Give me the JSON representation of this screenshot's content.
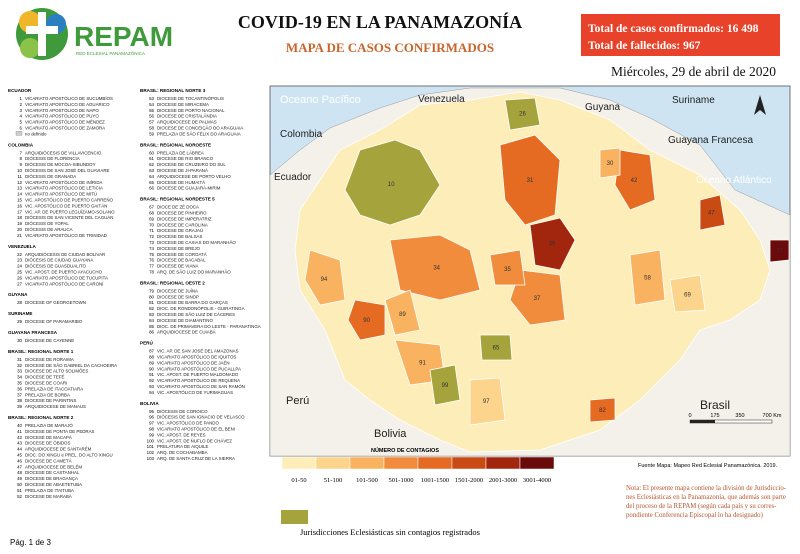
{
  "header": {
    "logo": "REPAM",
    "logo_sub": "RED ECLESIAL PANAMAZÓNICA",
    "title": "COVID-19 EN LA PANAMAZONÍA",
    "subtitle": "MAPA DE CASOS CONFIRMADOS",
    "totals": [
      "Total de casos confirmados: 16 498",
      "Total de fallecidos: 967"
    ],
    "date": "Miércoles, 29 de abril de 2020"
  },
  "lists": [
    [
      {
        "heading": "ECUADOR",
        "items": [
          {
            "n": "1",
            "name": "VICARIATO APOSTÓLICO DE SUCUMBÍOS"
          },
          {
            "n": "2",
            "name": "VICARIATO APOSTÓLICO DE AGUARICO"
          },
          {
            "n": "3",
            "name": "VICARIATO APOSTÓLICO DE NAPO"
          },
          {
            "n": "4",
            "name": "VICARIATO APOSTÓLICO DE PUYO"
          },
          {
            "n": "5",
            "name": "VICARIATO APOSTÓLICO DE MÉNDEZ"
          },
          {
            "n": "6",
            "name": "VICARIATO APOSTÓLICO DE ZAMORA"
          },
          {
            "n": "",
            "name": "no definido"
          }
        ]
      },
      {
        "heading": "COLOMBIA",
        "items": [
          {
            "n": "7",
            "name": "ARQUIDIÓCESIS DE VILLAVICENCIO"
          },
          {
            "n": "8",
            "name": "DIÓCESIS DE FLORENCIA"
          },
          {
            "n": "9",
            "name": "DIÓCESIS DE MOCOA-SIBUNDOY"
          },
          {
            "n": "10",
            "name": "DIÓCESIS DE SAN JOSÉ DEL GUAVIARE"
          },
          {
            "n": "11",
            "name": "DIÓCESIS DE GRANADA"
          },
          {
            "n": "12",
            "name": "VICARIATO APOSTÓLICO DE INÍRIDA"
          },
          {
            "n": "13",
            "name": "VICARIATO APOSTÓLICO DE LETICIA"
          },
          {
            "n": "14",
            "name": "VICARIATO APOSTÓLICO DE MITÚ"
          },
          {
            "n": "15",
            "name": "VIC. APOSTÓLICO DE PUERTO CARREÑO"
          },
          {
            "n": "16",
            "name": "VIC. APOSTÓLICO DE PUERTO GAITÁN"
          },
          {
            "n": "17",
            "name": "VIC. AP. DE PUERTO LEGUÍZAMO-SOLANO"
          },
          {
            "n": "18",
            "name": "DIÓCESIS DE SAN VICENTE DEL CAGUÁN"
          },
          {
            "n": "19",
            "name": "DIÓCESIS DE YOPAL"
          },
          {
            "n": "20",
            "name": "DIÓCESIS DE ARAUCA"
          },
          {
            "n": "21",
            "name": "VICARIATO APOSTÓLICO DE TRINIDAD"
          }
        ]
      },
      {
        "heading": "VENEZUELA",
        "items": [
          {
            "n": "22",
            "name": "ARQUIDIÓCESIS DE CIUDAD BOLÍVAR"
          },
          {
            "n": "23",
            "name": "DIÓCESIS DE CIUDAD GUAYANA"
          },
          {
            "n": "24",
            "name": "DIÓCESIS DE GUASDUALITO"
          },
          {
            "n": "25",
            "name": "VIC. APOST. DE PUERTO AYACUCHO"
          },
          {
            "n": "26",
            "name": "VICARIATO APOSTÓLICO DE TUCUPITA"
          },
          {
            "n": "27",
            "name": "VICARIATO APOSTÓLICO DE CARONÍ"
          }
        ]
      },
      {
        "heading": "GUYANA",
        "items": [
          {
            "n": "28",
            "name": "DIOCESE OF GEORGETOWN"
          }
        ]
      },
      {
        "heading": "SURINAME",
        "items": [
          {
            "n": "29",
            "name": "DIOCESE OF PARAMARIBO"
          }
        ]
      },
      {
        "heading": "GUAYANA FRANCESA",
        "items": [
          {
            "n": "30",
            "name": "DIOCESE DE CAYENNE"
          }
        ]
      },
      {
        "heading": "BRASIL: REGIONAL NORTE 1",
        "items": [
          {
            "n": "31",
            "name": "DIOCESE DE RORAIMA"
          },
          {
            "n": "32",
            "name": "DIOCESE DE SÃO GABRIEL DA CACHOEIRA"
          },
          {
            "n": "33",
            "name": "DIOCESE DE ALTO SOLIMÕES"
          },
          {
            "n": "34",
            "name": "DIOCESE DE TEFÉ"
          },
          {
            "n": "35",
            "name": "DIOCESE DE COARI"
          },
          {
            "n": "36",
            "name": "PRELAZIA DE ITACOATIARA"
          },
          {
            "n": "37",
            "name": "PRELAZIA DE BORBA"
          },
          {
            "n": "38",
            "name": "DIOCESE DE PARINTINS"
          },
          {
            "n": "39",
            "name": "ARQUIDIOCESE DE MANAUS"
          }
        ]
      },
      {
        "heading": "BRASIL: REGIONAL NORTE 2",
        "items": [
          {
            "n": "40",
            "name": "PRELAZIA DE MARAJÓ"
          },
          {
            "n": "41",
            "name": "DIOCESE DE PONTA DE PEDRAS"
          },
          {
            "n": "42",
            "name": "DIOCESE DE MACAPÁ"
          },
          {
            "n": "43",
            "name": "DIOCESE DE ÓBIDOS"
          },
          {
            "n": "44",
            "name": "ARQUIDIOCESE DE SANTARÉM"
          },
          {
            "n": "45",
            "name": "DIOC. DO XINGU e PREL. DO ALTO XINGU"
          },
          {
            "n": "46",
            "name": "DIOCESE DE CAMETÁ"
          },
          {
            "n": "47",
            "name": "ARQUIDIOCESE DE BELÉM"
          },
          {
            "n": "48",
            "name": "DIOCESE DE CASTANHAL"
          },
          {
            "n": "49",
            "name": "DIOCESE DE BRAGANÇA"
          },
          {
            "n": "50",
            "name": "DIOCESE DE ABAETETUBA"
          },
          {
            "n": "51",
            "name": "PRELAZIA DE ITAITUBA"
          },
          {
            "n": "52",
            "name": "DIOCESE DE MARABÁ"
          }
        ]
      }
    ],
    [
      {
        "heading": "BRASIL: REGIONAL NORTE 3",
        "items": [
          {
            "n": "53",
            "name": "DIOCESE DE TOCANTINÓPOLIS"
          },
          {
            "n": "54",
            "name": "DIOCESE DE MIRACEMA"
          },
          {
            "n": "55",
            "name": "DIOCESE DE PORTO NACIONAL"
          },
          {
            "n": "56",
            "name": "DIOCESE DE CRISTALÂNDIA"
          },
          {
            "n": "57",
            "name": "ARQUIDIOCESE DE PALMAS"
          },
          {
            "n": "58",
            "name": "DIOCESE DE CONCEIÇÃO DO ARAGUAIA"
          },
          {
            "n": "59",
            "name": "PRELAZIA DE SÃO FÉLIX DO ARAGUAIA"
          }
        ]
      },
      {
        "heading": "BRASIL: REGIONAL NOROESTE",
        "items": [
          {
            "n": "60",
            "name": "PRELAZIA DE LÁBREA"
          },
          {
            "n": "61",
            "name": "DIOCESE DE RIO BRANCO"
          },
          {
            "n": "62",
            "name": "DIOCESE DE CRUZEIRO DO SUL"
          },
          {
            "n": "63",
            "name": "DIOCESE DE JI-PARANÁ"
          },
          {
            "n": "64",
            "name": "ARQUIDIOCESE DE PORTO VELHO"
          },
          {
            "n": "65",
            "name": "DIOCESE DE HUMAITÁ"
          },
          {
            "n": "66",
            "name": "DIOCESE DE GUAJARÁ-MIRIM"
          }
        ]
      },
      {
        "heading": "BRASIL: REGIONAL NORDESTE 5",
        "items": [
          {
            "n": "67",
            "name": "DIOCE DE ZÉ DOCA"
          },
          {
            "n": "68",
            "name": "DIOCESE DE PINHEIRO"
          },
          {
            "n": "69",
            "name": "DIOCESE DE IMPERATRIZ"
          },
          {
            "n": "70",
            "name": "DIOCESE DE CAROLINA"
          },
          {
            "n": "71",
            "name": "DIOCESE DE GRAJAÚ"
          },
          {
            "n": "72",
            "name": "DIOCESE DE BALSAS"
          },
          {
            "n": "73",
            "name": "DIOCESE DE CAXIAS DO MARANHÃO"
          },
          {
            "n": "74",
            "name": "DIOCESE DE BREJO"
          },
          {
            "n": "75",
            "name": "DIOCESE DE COROATÁ"
          },
          {
            "n": "76",
            "name": "DIOCESE DE BACABAL"
          },
          {
            "n": "77",
            "name": "DIOCESE DE VIANA"
          },
          {
            "n": "78",
            "name": "ARQ. DE SÃO LUIZ DO MARANHÃO"
          }
        ]
      },
      {
        "heading": "BRASIL: REGIONAL OESTE 2",
        "items": [
          {
            "n": "79",
            "name": "DIOCESE DE JUÍNA"
          },
          {
            "n": "80",
            "name": "DIOCESE DE SINOP"
          },
          {
            "n": "81",
            "name": "DIOCESE DE BARRA DO GARÇAS"
          },
          {
            "n": "82",
            "name": "DIOC. DE RONDONÓPOLIS - GUIRATINGA"
          },
          {
            "n": "83",
            "name": "DIOCESE DE SÃO LUIZ DE CÁCERES"
          },
          {
            "n": "84",
            "name": "DIOCESE DE DIAMANTINO"
          },
          {
            "n": "85",
            "name": "DIOC. DE PRIMAVERA DO LESTE - PARANATINGA"
          },
          {
            "n": "86",
            "name": "ARQUIDIOCESE DE CUIABÁ"
          }
        ]
      },
      {
        "heading": "PERÚ",
        "items": [
          {
            "n": "87",
            "name": "VIC. AP. DE SAN JOSÉ DEL AMAZONAS"
          },
          {
            "n": "88",
            "name": "VICARIATO APOSTÓLICO DE IQUITOS"
          },
          {
            "n": "89",
            "name": "VICARIATO APOSTÓLICO DE JAÉN"
          },
          {
            "n": "90",
            "name": "VICARIATO APOSTÓLICO DE PUCALLPA"
          },
          {
            "n": "91",
            "name": "VIC. APOST. DE PUERTO MALDONADO"
          },
          {
            "n": "92",
            "name": "VICARIATO APOSTÓLICO DE REQUENA"
          },
          {
            "n": "93",
            "name": "VICARIATO APOSTÓLICO DE SAN RAMÓN"
          },
          {
            "n": "94",
            "name": "VIC. APOSTÓLICO DE YURIMAGUAS"
          }
        ]
      },
      {
        "heading": "BOLIVIA",
        "items": [
          {
            "n": "95",
            "name": "DIÓCESIS DE COROICO"
          },
          {
            "n": "96",
            "name": "DIÓCESIS DE SAN IGNACIO DE VELASCO"
          },
          {
            "n": "97",
            "name": "VIC. APOSTÓLICO DE PANDO"
          },
          {
            "n": "98",
            "name": "VICARIATO APOSTÓLICO DE EL BENI"
          },
          {
            "n": "99",
            "name": "VIC. APOST. DE REYES"
          },
          {
            "n": "100",
            "name": "VIC. APOST. DE ÑUFLO DE CHÁVEZ"
          },
          {
            "n": "101",
            "name": "PRELATURA DE AIQUILE"
          },
          {
            "n": "102",
            "name": "ARQ. DE COCHABAMBA"
          },
          {
            "n": "103",
            "name": "ARQ. DE SANTA CRUZ DE LA SIERRA"
          }
        ]
      }
    ]
  ],
  "map": {
    "places": [
      "Oceano Pacífico",
      "Venezuela",
      "Guyana",
      "Suriname",
      "Colombia",
      "Guayana Francesa",
      "Ecuador",
      "Oceano Atlántico",
      "Perú",
      "Bolivia",
      "Brasil"
    ],
    "region_numbers": [
      "10",
      "31",
      "39",
      "34",
      "37",
      "42",
      "90",
      "91",
      "94",
      "99",
      "65",
      "58",
      "47",
      "77",
      "97",
      "82",
      "26",
      "30",
      "35",
      "69",
      "89"
    ],
    "scale": [
      "0",
      "175",
      "350",
      "700 Km"
    ],
    "source": "Fuente Mapa: Mapeo Red Eclesial Panamazónica. 2019."
  },
  "legend": {
    "title": "NÚMERO DE CONTAGIOS",
    "bins": [
      {
        "label": "01-50",
        "color": "#fdedb8"
      },
      {
        "label": "51-100",
        "color": "#fcd48c"
      },
      {
        "label": "101-500",
        "color": "#f9b360"
      },
      {
        "label": "501-1000",
        "color": "#f08c3c"
      },
      {
        "label": "1001-1500",
        "color": "#e56a22"
      },
      {
        "label": "1501-2000",
        "color": "#c94a12"
      },
      {
        "label": "2001-3000",
        "color": "#a2250e"
      },
      {
        "label": "3001-4000",
        "color": "#6a0a0a"
      }
    ],
    "none": {
      "label": "Jurisdicciones Eclesiásticas sin contagios registrados",
      "color": "#a5a43c"
    }
  },
  "note": [
    "Nota: El presente mapa contiene la división de Jurisdiccio-",
    "nes Eclesiásticas en la Panamazonía, que además son parte",
    "del proceso de la REPAM  (según cada país y su corres-",
    "pondiente Conferencia Episcopal lo ha designado)"
  ],
  "page": "Pág. 1 de 3"
}
